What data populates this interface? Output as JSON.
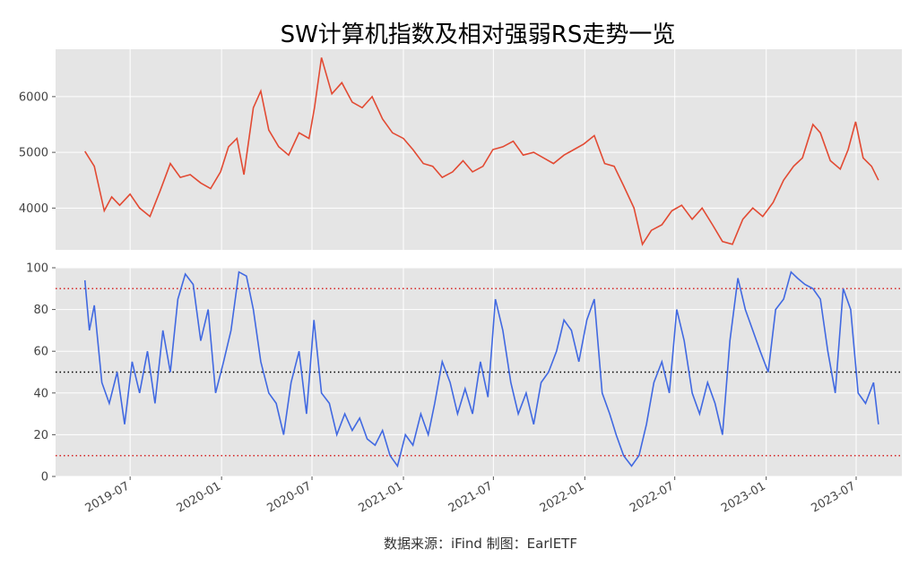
{
  "chart_data": {
    "type": "line",
    "title": "SW计算机指数及相对强弱RS走势一览",
    "source_note": "数据来源：iFind 制图：EarlETF",
    "x_tick_labels": [
      "2019-07",
      "2020-01",
      "2020-07",
      "2021-01",
      "2021-07",
      "2022-01",
      "2022-07",
      "2023-01",
      "2023-07"
    ],
    "panels": [
      {
        "name": "index",
        "series_color": "#e24a33",
        "ylim": [
          3250,
          6850
        ],
        "y_ticks": [
          4000,
          5000,
          6000
        ],
        "grid": true,
        "x": [
          "2019-04-01",
          "2019-04-20",
          "2019-05-10",
          "2019-05-25",
          "2019-06-10",
          "2019-07-01",
          "2019-07-20",
          "2019-08-10",
          "2019-08-30",
          "2019-09-20",
          "2019-10-10",
          "2019-10-30",
          "2019-11-20",
          "2019-12-10",
          "2019-12-30",
          "2020-01-15",
          "2020-02-01",
          "2020-02-15",
          "2020-03-05",
          "2020-03-20",
          "2020-04-05",
          "2020-04-25",
          "2020-05-15",
          "2020-06-05",
          "2020-06-25",
          "2020-07-06",
          "2020-07-20",
          "2020-08-10",
          "2020-08-30",
          "2020-09-20",
          "2020-10-10",
          "2020-10-30",
          "2020-11-20",
          "2020-12-10",
          "2021-01-01",
          "2021-01-20",
          "2021-02-10",
          "2021-03-01",
          "2021-03-20",
          "2021-04-10",
          "2021-05-01",
          "2021-05-20",
          "2021-06-10",
          "2021-06-30",
          "2021-07-20",
          "2021-08-10",
          "2021-08-30",
          "2021-09-20",
          "2021-10-10",
          "2021-10-30",
          "2021-11-20",
          "2021-12-10",
          "2021-12-30",
          "2022-01-20",
          "2022-02-10",
          "2022-03-01",
          "2022-03-20",
          "2022-04-10",
          "2022-04-27",
          "2022-05-15",
          "2022-06-05",
          "2022-06-25",
          "2022-07-15",
          "2022-08-05",
          "2022-08-25",
          "2022-09-15",
          "2022-10-05",
          "2022-10-25",
          "2022-11-15",
          "2022-12-05",
          "2022-12-25",
          "2023-01-15",
          "2023-02-05",
          "2023-02-25",
          "2023-03-15",
          "2023-04-05",
          "2023-04-20",
          "2023-05-10",
          "2023-05-30",
          "2023-06-15",
          "2023-06-30",
          "2023-07-15",
          "2023-08-01",
          "2023-08-15"
        ],
        "values": [
          5020,
          4750,
          3950,
          4200,
          4050,
          4250,
          4000,
          3850,
          4300,
          4800,
          4550,
          4600,
          4450,
          4350,
          4650,
          5100,
          5250,
          4600,
          5800,
          6100,
          5400,
          5100,
          4950,
          5350,
          5250,
          5800,
          6700,
          6050,
          6250,
          5900,
          5800,
          6000,
          5600,
          5350,
          5250,
          5050,
          4800,
          4750,
          4550,
          4650,
          4850,
          4650,
          4750,
          5050,
          5100,
          5200,
          4950,
          5000,
          4900,
          4800,
          4950,
          5050,
          5150,
          5300,
          4800,
          4750,
          4400,
          4000,
          3350,
          3600,
          3700,
          3950,
          4050,
          3800,
          4000,
          3700,
          3400,
          3350,
          3800,
          4000,
          3850,
          4100,
          4500,
          4750,
          4900,
          5500,
          5350,
          4850,
          4700,
          5050,
          5550,
          4900,
          4750,
          4500
        ]
      },
      {
        "name": "rs",
        "series_color": "#4169e1",
        "ylim": [
          0,
          100
        ],
        "y_ticks": [
          0,
          20,
          40,
          60,
          80,
          100
        ],
        "grid": true,
        "reference_lines": [
          {
            "value": 90,
            "color": "#d62728",
            "style": "dotted"
          },
          {
            "value": 50,
            "color": "#000000",
            "style": "dotted"
          },
          {
            "value": 10,
            "color": "#d62728",
            "style": "dotted"
          }
        ],
        "x": [
          "2019-04-01",
          "2019-04-10",
          "2019-04-20",
          "2019-05-05",
          "2019-05-20",
          "2019-06-05",
          "2019-06-20",
          "2019-07-05",
          "2019-07-20",
          "2019-08-05",
          "2019-08-20",
          "2019-09-05",
          "2019-09-20",
          "2019-10-05",
          "2019-10-20",
          "2019-11-05",
          "2019-11-20",
          "2019-12-05",
          "2019-12-20",
          "2020-01-05",
          "2020-01-20",
          "2020-02-05",
          "2020-02-20",
          "2020-03-05",
          "2020-03-20",
          "2020-04-05",
          "2020-04-20",
          "2020-05-05",
          "2020-05-20",
          "2020-06-05",
          "2020-06-20",
          "2020-07-05",
          "2020-07-20",
          "2020-08-05",
          "2020-08-20",
          "2020-09-05",
          "2020-09-20",
          "2020-10-05",
          "2020-10-20",
          "2020-11-05",
          "2020-11-20",
          "2020-12-05",
          "2020-12-20",
          "2021-01-05",
          "2021-01-20",
          "2021-02-05",
          "2021-02-20",
          "2021-03-05",
          "2021-03-20",
          "2021-04-05",
          "2021-04-20",
          "2021-05-05",
          "2021-05-20",
          "2021-06-05",
          "2021-06-20",
          "2021-07-05",
          "2021-07-20",
          "2021-08-05",
          "2021-08-20",
          "2021-09-05",
          "2021-09-20",
          "2021-10-05",
          "2021-10-20",
          "2021-11-05",
          "2021-11-20",
          "2021-12-05",
          "2021-12-20",
          "2022-01-05",
          "2022-01-20",
          "2022-02-05",
          "2022-02-20",
          "2022-03-05",
          "2022-03-20",
          "2022-04-05",
          "2022-04-20",
          "2022-05-05",
          "2022-05-20",
          "2022-06-05",
          "2022-06-20",
          "2022-07-05",
          "2022-07-20",
          "2022-08-05",
          "2022-08-20",
          "2022-09-05",
          "2022-09-20",
          "2022-10-05",
          "2022-10-20",
          "2022-11-05",
          "2022-11-20",
          "2022-12-05",
          "2022-12-20",
          "2023-01-05",
          "2023-01-20",
          "2023-02-05",
          "2023-02-20",
          "2023-03-05",
          "2023-03-20",
          "2023-04-05",
          "2023-04-20",
          "2023-05-05",
          "2023-05-20",
          "2023-06-05",
          "2023-06-20",
          "2023-07-05",
          "2023-07-20",
          "2023-08-05",
          "2023-08-15"
        ],
        "values": [
          94,
          70,
          82,
          45,
          35,
          50,
          25,
          55,
          40,
          60,
          35,
          70,
          50,
          85,
          97,
          92,
          65,
          80,
          40,
          55,
          70,
          98,
          96,
          80,
          55,
          40,
          35,
          20,
          45,
          60,
          30,
          75,
          40,
          35,
          20,
          30,
          22,
          28,
          18,
          15,
          22,
          10,
          5,
          20,
          15,
          30,
          20,
          35,
          55,
          45,
          30,
          42,
          30,
          55,
          38,
          85,
          70,
          45,
          30,
          40,
          25,
          45,
          50,
          60,
          75,
          70,
          55,
          75,
          85,
          40,
          30,
          20,
          10,
          5,
          10,
          25,
          45,
          55,
          40,
          80,
          65,
          40,
          30,
          45,
          35,
          20,
          65,
          95,
          80,
          70,
          60,
          50,
          80,
          85,
          98,
          95,
          92,
          90,
          85,
          60,
          40,
          90,
          80,
          40,
          35,
          45,
          25
        ]
      }
    ]
  }
}
